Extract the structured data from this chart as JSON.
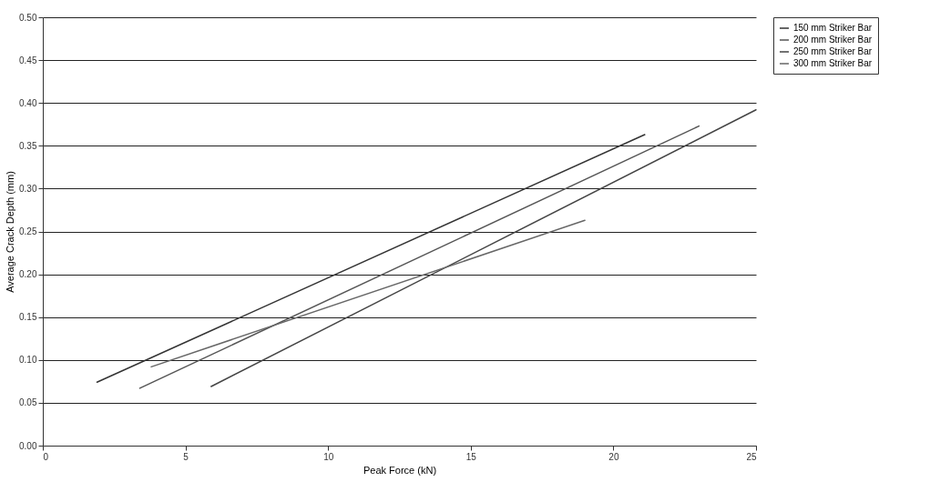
{
  "chart_data": {
    "type": "line",
    "xlabel": "Peak Force (kN)",
    "ylabel": "Average Crack Depth (mm)",
    "xlim": [
      0,
      25
    ],
    "xticks": [
      0,
      5,
      10,
      15,
      20,
      25
    ],
    "ylim": [
      0,
      0.5
    ],
    "yticks": [
      {
        "value": 0,
        "label": "0.00"
      },
      0.05,
      {
        "value": 0.1,
        "label": "0.10"
      },
      0.15,
      {
        "value": 0.2,
        "label": "0.20"
      },
      0.25,
      {
        "value": 0.3,
        "label": "0.30"
      },
      0.35,
      {
        "value": 0.4,
        "label": "0.40"
      },
      0.45,
      {
        "value": 0.5,
        "label": "0.50"
      }
    ],
    "grid": "y",
    "legend": "right",
    "marker": "none",
    "line_style": "solid",
    "series": [
      {
        "name": "150 mm Striker Bar",
        "color": "#333333",
        "x": [
          1.9,
          21.1
        ],
        "values": [
          0.074,
          0.363
        ]
      },
      {
        "name": "200 mm Striker Bar",
        "color": "#555555",
        "x": [
          3.4,
          23
        ],
        "values": [
          0.067,
          0.373
        ]
      },
      {
        "name": "250 mm Striker Bar",
        "color": "#444444",
        "x": [
          5.9,
          25
        ],
        "values": [
          0.069,
          0.392
        ]
      },
      {
        "name": "300 mm Striker Bar",
        "color": "#666666",
        "x": [
          3.8,
          19
        ],
        "values": [
          0.092,
          0.263
        ]
      }
    ]
  }
}
